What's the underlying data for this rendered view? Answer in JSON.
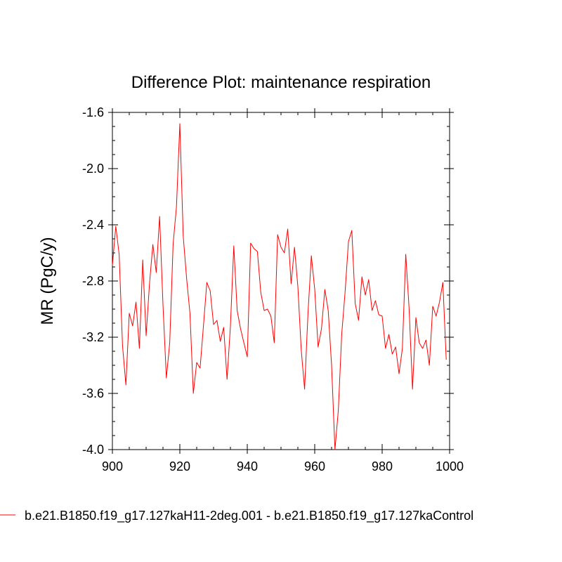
{
  "chart_data": {
    "type": "line",
    "title": "Difference Plot: maintenance respiration",
    "xlabel": "",
    "ylabel": "MR  (PgC/y)",
    "xlim": [
      900,
      1000
    ],
    "ylim": [
      -4.0,
      -1.6
    ],
    "x_ticks": [
      900,
      920,
      940,
      960,
      980,
      1000
    ],
    "x_tick_labels": [
      "900",
      "920",
      "940",
      "960",
      "980",
      "1000"
    ],
    "y_ticks": [
      -1.6,
      -2.0,
      -2.4,
      -2.8,
      -3.2,
      -3.6,
      -4.0
    ],
    "y_tick_labels": [
      "-1.6",
      "-2.0",
      "-2.4",
      "-2.8",
      "-3.2",
      "-3.6",
      "-4.0"
    ],
    "grid": false,
    "legend_position": "bottom",
    "series": [
      {
        "name": "b.e21.B1850.f19_g17.127kaH11-2deg.001 - b.e21.B1850.f19_g17.127kaControl",
        "color": "#ff0000",
        "x_start": 900,
        "x_step": 1,
        "values": [
          -2.69,
          -2.41,
          -2.61,
          -3.26,
          -3.54,
          -3.03,
          -3.12,
          -2.95,
          -3.28,
          -2.65,
          -3.19,
          -2.82,
          -2.54,
          -2.74,
          -2.34,
          -2.97,
          -3.49,
          -3.24,
          -2.54,
          -2.27,
          -1.68,
          -2.48,
          -2.78,
          -3.03,
          -3.6,
          -3.38,
          -3.42,
          -3.12,
          -2.81,
          -2.87,
          -3.11,
          -3.08,
          -3.23,
          -3.13,
          -3.5,
          -3.12,
          -2.55,
          -3.01,
          -3.14,
          -3.24,
          -3.34,
          -2.53,
          -2.57,
          -2.59,
          -2.88,
          -3.01,
          -3.0,
          -3.05,
          -3.24,
          -2.47,
          -2.56,
          -2.6,
          -2.43,
          -2.82,
          -2.56,
          -2.84,
          -3.29,
          -3.57,
          -3.03,
          -2.62,
          -2.86,
          -3.27,
          -3.14,
          -2.86,
          -3.01,
          -3.4,
          -4.0,
          -3.72,
          -3.18,
          -2.88,
          -2.52,
          -2.44,
          -2.96,
          -3.08,
          -2.77,
          -2.9,
          -2.79,
          -3.01,
          -2.94,
          -3.04,
          -3.05,
          -3.28,
          -3.18,
          -3.32,
          -3.27,
          -3.46,
          -3.28,
          -2.61,
          -3.0,
          -3.57,
          -3.06,
          -3.24,
          -3.28,
          -3.22,
          -3.4,
          -2.98,
          -3.05,
          -2.95,
          -2.81,
          -3.36
        ]
      }
    ]
  }
}
